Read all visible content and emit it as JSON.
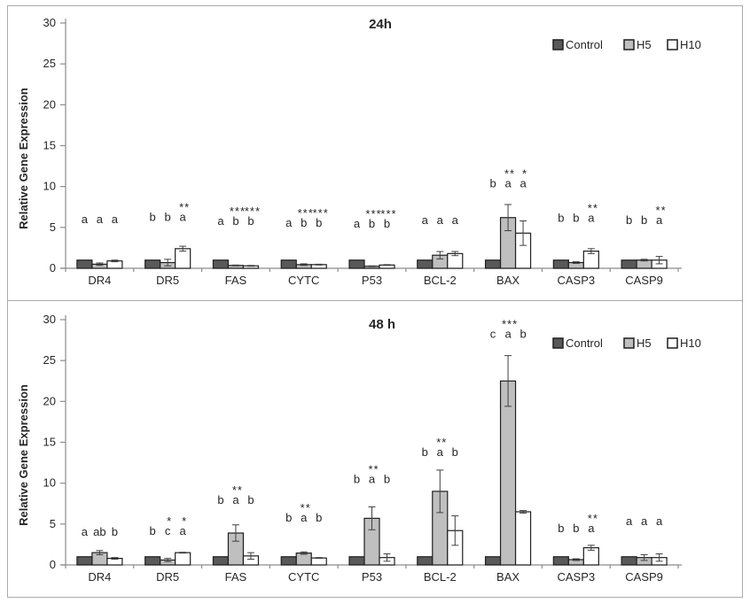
{
  "figure": {
    "ylabel": "Relative Gene Expression",
    "legend": [
      "Control",
      "H5",
      "H10"
    ],
    "colors": {
      "control": "#595959",
      "h5": "#bfbfbf",
      "h10": "#ffffff",
      "bar_border": "#1f1f1f",
      "axis": "#8c8c8c",
      "text": "#262626",
      "panel_border": "#ababab",
      "error_bar": "#404040"
    }
  },
  "chart_data": [
    {
      "type": "bar",
      "title": "24h",
      "ylabel": "Relative Gene Expression",
      "ylim": [
        0,
        30
      ],
      "yticks": [
        0,
        5,
        10,
        15,
        20,
        25,
        30
      ],
      "grid": false,
      "legend_position": "top-right",
      "categories": [
        "DR4",
        "DR5",
        "FAS",
        "CYTC",
        "P53",
        "BCL-2",
        "BAX",
        "CASP3",
        "CASP9"
      ],
      "legend": [
        "Control",
        "H5",
        "H10"
      ],
      "series": [
        {
          "name": "Control",
          "values": [
            1.0,
            1.0,
            1.0,
            1.0,
            1.0,
            1.0,
            1.0,
            1.0,
            1.0
          ],
          "errors": [
            0,
            0,
            0,
            0,
            0,
            0,
            0,
            0,
            0
          ]
        },
        {
          "name": "H5",
          "values": [
            0.5,
            0.7,
            0.35,
            0.45,
            0.25,
            1.6,
            6.2,
            0.7,
            1.0
          ],
          "errors": [
            0.15,
            0.4,
            0.05,
            0.1,
            0.05,
            0.45,
            1.6,
            0.1,
            0.1
          ]
        },
        {
          "name": "H10",
          "values": [
            0.9,
            2.4,
            0.3,
            0.45,
            0.4,
            1.8,
            4.3,
            2.1,
            1.0
          ],
          "errors": [
            0.1,
            0.3,
            0.05,
            0.05,
            0.05,
            0.25,
            1.5,
            0.3,
            0.45
          ]
        }
      ],
      "annotations": {
        "letters": [
          [
            "a",
            "a",
            "a"
          ],
          [
            "b",
            "b",
            "a"
          ],
          [
            "a",
            "b",
            "b"
          ],
          [
            "a",
            "b",
            "b"
          ],
          [
            "a",
            "b",
            "b"
          ],
          [
            "a",
            "a",
            "a"
          ],
          [
            "b",
            "a",
            "a"
          ],
          [
            "b",
            "b",
            "a"
          ],
          [
            "b",
            "b",
            "a"
          ]
        ],
        "stars": [
          [
            "",
            "",
            ""
          ],
          [
            "",
            "",
            "**"
          ],
          [
            "",
            "***",
            "***"
          ],
          [
            "",
            "***",
            "***"
          ],
          [
            "",
            "***",
            "***"
          ],
          [
            "",
            "",
            ""
          ],
          [
            "",
            "**",
            "*"
          ],
          [
            "",
            "",
            "**"
          ],
          [
            "",
            "",
            "**"
          ]
        ],
        "letters_y": [
          5.5,
          5.8,
          5.3,
          5.1,
          5.0,
          5.4,
          9.9,
          5.7,
          5.4
        ]
      }
    },
    {
      "type": "bar",
      "title": "48 h",
      "ylabel": "Relative Gene Expression",
      "ylim": [
        0,
        30
      ],
      "yticks": [
        0,
        5,
        10,
        15,
        20,
        25,
        30
      ],
      "grid": false,
      "legend_position": "top-right",
      "categories": [
        "DR4",
        "DR5",
        "FAS",
        "CYTC",
        "P53",
        "BCL-2",
        "BAX",
        "CASP3",
        "CASP9"
      ],
      "legend": [
        "Control",
        "H5",
        "H10"
      ],
      "series": [
        {
          "name": "Control",
          "values": [
            1.0,
            1.0,
            1.0,
            1.0,
            1.0,
            1.0,
            1.0,
            1.0,
            1.0
          ],
          "errors": [
            0,
            0,
            0,
            0,
            0,
            0,
            0,
            0,
            0
          ]
        },
        {
          "name": "H5",
          "values": [
            1.5,
            0.6,
            3.9,
            1.45,
            5.7,
            9.0,
            22.5,
            0.65,
            0.9
          ],
          "errors": [
            0.25,
            0.2,
            1.0,
            0.15,
            1.4,
            2.6,
            3.1,
            0.1,
            0.35
          ]
        },
        {
          "name": "H10",
          "values": [
            0.8,
            1.5,
            1.1,
            0.85,
            0.9,
            4.2,
            6.5,
            2.1,
            0.9
          ],
          "errors": [
            0.1,
            0.05,
            0.4,
            0.05,
            0.45,
            1.8,
            0.15,
            0.3,
            0.45
          ]
        }
      ],
      "annotations": {
        "letters": [
          [
            "a",
            "ab",
            "b"
          ],
          [
            "b",
            "c",
            "a"
          ],
          [
            "b",
            "a",
            "b"
          ],
          [
            "b",
            "a",
            "b"
          ],
          [
            "b",
            "a",
            "b"
          ],
          [
            "b",
            "a",
            "b"
          ],
          [
            "c",
            "a",
            "b"
          ],
          [
            "b",
            "b",
            "a"
          ],
          [
            "a",
            "a",
            "a"
          ]
        ],
        "stars": [
          [
            "",
            "",
            ""
          ],
          [
            "",
            "*",
            "*"
          ],
          [
            "",
            "**",
            ""
          ],
          [
            "",
            "**",
            ""
          ],
          [
            "",
            "**",
            ""
          ],
          [
            "",
            "**",
            ""
          ],
          [
            "",
            "***",
            ""
          ],
          [
            "",
            "",
            "**"
          ],
          [
            "",
            "",
            ""
          ]
        ],
        "letters_y": [
          3.6,
          3.7,
          7.5,
          5.3,
          10.0,
          13.3,
          27.8,
          4.0,
          4.9
        ]
      }
    }
  ]
}
